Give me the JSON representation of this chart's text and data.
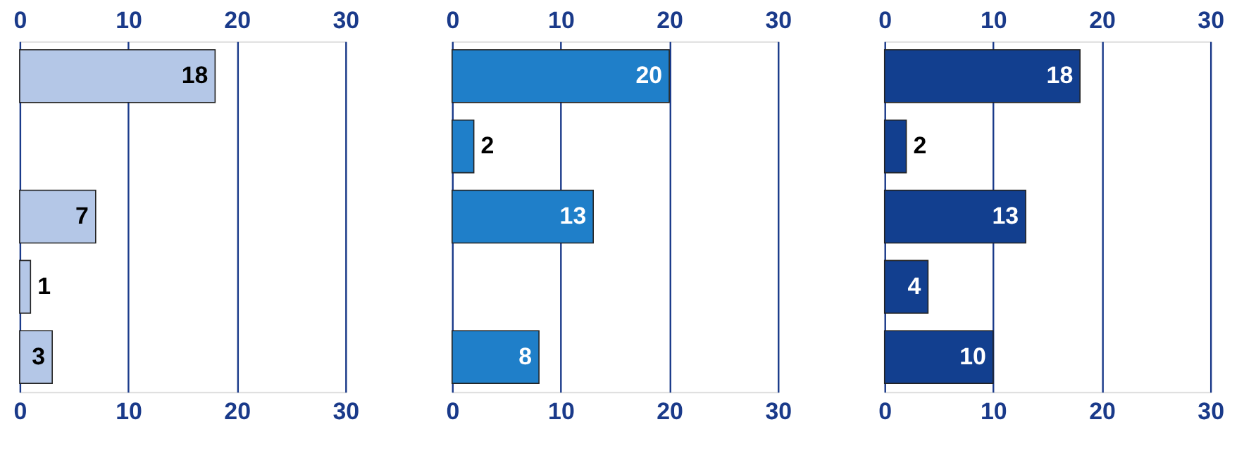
{
  "chart_data": [
    {
      "type": "bar",
      "orientation": "horizontal",
      "categories": [
        null,
        null,
        null,
        null,
        null
      ],
      "values": [
        18,
        null,
        7,
        1,
        3
      ],
      "color": "#b4c7e7",
      "xlim": [
        0,
        30
      ],
      "xticks": [
        0,
        10,
        20,
        30
      ],
      "x2lim": [
        0,
        30
      ],
      "x2ticks": [
        0,
        10,
        20,
        30
      ],
      "grid": "x",
      "data_labels": true,
      "tick_labels": "x"
    },
    {
      "type": "bar",
      "orientation": "horizontal",
      "categories": [
        null,
        null,
        null,
        null,
        null
      ],
      "values": [
        20,
        2,
        13,
        null,
        8
      ],
      "color": "#1f7fc9",
      "xlim": [
        0,
        30
      ],
      "xticks": [
        0,
        10,
        20,
        30
      ],
      "x2lim": [
        0,
        30
      ],
      "x2ticks": [
        0,
        10,
        20,
        30
      ],
      "grid": "x",
      "data_labels": true,
      "tick_labels": "x"
    },
    {
      "type": "bar",
      "orientation": "horizontal",
      "categories": [
        null,
        null,
        null,
        null,
        null
      ],
      "values": [
        18,
        2,
        13,
        4,
        10
      ],
      "color": "#123f8f",
      "xlim": [
        0,
        30
      ],
      "xticks": [
        0,
        10,
        20,
        30
      ],
      "x2lim": [
        0,
        30
      ],
      "x2ticks": [
        0,
        10,
        20,
        30
      ],
      "grid": "x",
      "data_labels": true,
      "tick_labels": "x"
    }
  ]
}
